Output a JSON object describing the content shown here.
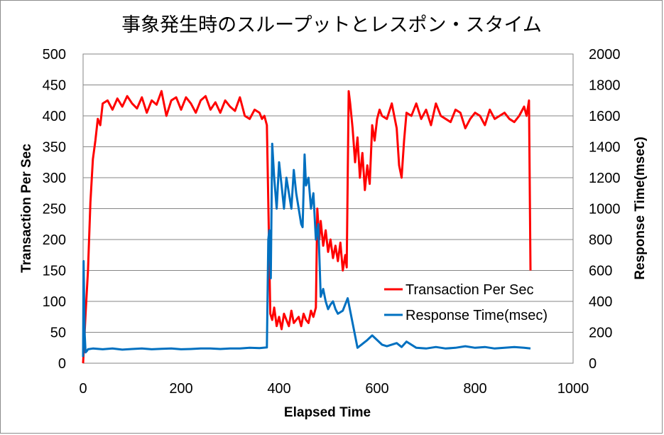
{
  "chart_data": {
    "type": "line",
    "title": "事象発生時のスループットとレスポン・スタイム",
    "xlabel": "Elapsed Time",
    "ylabel_left": "Transaction Per Sec",
    "ylabel_right": "Response Time(msec)",
    "xlim": [
      0,
      1000
    ],
    "ylim_left": [
      0,
      500
    ],
    "ylim_right": [
      0,
      2000
    ],
    "x_ticks": [
      "0",
      "200",
      "400",
      "600",
      "800",
      "1000"
    ],
    "y_left_ticks": [
      "0",
      "50",
      "100",
      "150",
      "200",
      "250",
      "300",
      "350",
      "400",
      "450",
      "500"
    ],
    "y_right_ticks": [
      "0",
      "200",
      "400",
      "600",
      "800",
      "1000",
      "1200",
      "1400",
      "1600",
      "1800",
      "2000"
    ],
    "grid": "horizontal",
    "legend_position": "bottom-right",
    "series": [
      {
        "name": "Transaction Per Sec",
        "axis": "left",
        "color": "#ff0000",
        "x": [
          0,
          5,
          10,
          15,
          20,
          25,
          30,
          35,
          40,
          50,
          60,
          70,
          80,
          90,
          100,
          110,
          120,
          130,
          140,
          150,
          160,
          170,
          180,
          190,
          200,
          210,
          220,
          230,
          240,
          250,
          260,
          270,
          280,
          290,
          300,
          310,
          320,
          330,
          340,
          350,
          360,
          365,
          370,
          375,
          378,
          382,
          386,
          390,
          395,
          400,
          405,
          410,
          415,
          420,
          425,
          430,
          435,
          440,
          445,
          450,
          455,
          460,
          465,
          470,
          475,
          478,
          482,
          485,
          490,
          495,
          500,
          505,
          510,
          515,
          520,
          525,
          530,
          535,
          538,
          542,
          545,
          550,
          555,
          560,
          565,
          570,
          575,
          580,
          585,
          590,
          595,
          600,
          605,
          610,
          620,
          630,
          640,
          645,
          650,
          655,
          660,
          670,
          680,
          690,
          700,
          710,
          720,
          730,
          740,
          750,
          760,
          770,
          780,
          790,
          800,
          810,
          820,
          830,
          840,
          850,
          860,
          870,
          880,
          890,
          900,
          905,
          910,
          913
        ],
        "y": [
          0,
          80,
          150,
          260,
          330,
          360,
          395,
          385,
          420,
          425,
          410,
          428,
          415,
          432,
          420,
          412,
          430,
          405,
          425,
          418,
          440,
          400,
          425,
          430,
          410,
          430,
          420,
          405,
          425,
          432,
          410,
          422,
          405,
          425,
          415,
          408,
          430,
          400,
          395,
          410,
          405,
          395,
          400,
          385,
          260,
          80,
          70,
          90,
          60,
          75,
          55,
          80,
          70,
          60,
          85,
          65,
          70,
          75,
          60,
          80,
          70,
          65,
          85,
          75,
          90,
          250,
          200,
          230,
          190,
          215,
          180,
          200,
          170,
          190,
          165,
          195,
          150,
          175,
          155,
          440,
          420,
          380,
          325,
          365,
          300,
          340,
          280,
          320,
          290,
          385,
          360,
          395,
          410,
          400,
          395,
          420,
          380,
          320,
          300,
          360,
          405,
          400,
          420,
          395,
          410,
          385,
          420,
          400,
          395,
          390,
          410,
          405,
          380,
          395,
          405,
          400,
          385,
          410,
          395,
          400,
          405,
          395,
          390,
          400,
          415,
          400,
          425,
          150
        ]
      },
      {
        "name": "Response Time(msec)",
        "axis": "right",
        "color": "#0070c0",
        "x": [
          0,
          1,
          3,
          5,
          8,
          10,
          20,
          40,
          60,
          80,
          100,
          120,
          140,
          160,
          180,
          200,
          220,
          240,
          260,
          280,
          300,
          320,
          340,
          360,
          375,
          378,
          380,
          383,
          386,
          390,
          395,
          400,
          405,
          410,
          415,
          420,
          425,
          430,
          435,
          440,
          445,
          448,
          452,
          455,
          460,
          465,
          470,
          475,
          480,
          485,
          490,
          495,
          500,
          505,
          510,
          515,
          520,
          530,
          540,
          560,
          580,
          590,
          600,
          610,
          620,
          640,
          650,
          660,
          680,
          700,
          720,
          740,
          760,
          780,
          800,
          820,
          840,
          860,
          880,
          900,
          913
        ],
        "y": [
          40,
          660,
          200,
          70,
          80,
          90,
          95,
          90,
          95,
          88,
          92,
          95,
          90,
          93,
          95,
          90,
          92,
          95,
          95,
          92,
          95,
          95,
          100,
          98,
          102,
          800,
          860,
          550,
          1420,
          1200,
          1000,
          1300,
          1150,
          1000,
          1200,
          1100,
          1000,
          1250,
          1100,
          1000,
          900,
          880,
          1350,
          1150,
          1200,
          1000,
          1100,
          800,
          900,
          430,
          480,
          400,
          350,
          380,
          400,
          350,
          320,
          340,
          420,
          100,
          150,
          180,
          150,
          120,
          110,
          130,
          105,
          140,
          100,
          95,
          105,
          95,
          100,
          110,
          100,
          105,
          95,
          100,
          105,
          100,
          95
        ]
      }
    ]
  }
}
